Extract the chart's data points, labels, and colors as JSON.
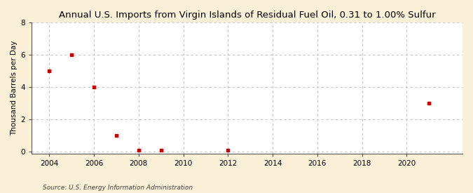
{
  "title": "Annual U.S. Imports from Virgin Islands of Residual Fuel Oil, 0.31 to 1.00% Sulfur",
  "ylabel": "Thousand Barrels per Day",
  "source": "Source: U.S. Energy Information Administration",
  "background_color": "#faf0d7",
  "plot_bg_color": "#ffffff",
  "marker_color": "#cc0000",
  "marker_size": 3.5,
  "xlim": [
    2003.2,
    2022.5
  ],
  "ylim": [
    -0.15,
    8
  ],
  "yticks": [
    0,
    2,
    4,
    6,
    8
  ],
  "xticks": [
    2004,
    2006,
    2008,
    2010,
    2012,
    2014,
    2016,
    2018,
    2020
  ],
  "data_x": [
    2004,
    2005,
    2006,
    2007,
    2008,
    2009,
    2012,
    2021
  ],
  "data_y": [
    5.0,
    6.0,
    4.0,
    1.0,
    0.05,
    0.08,
    0.05,
    3.0
  ],
  "title_fontsize": 9.5,
  "ylabel_fontsize": 7.5,
  "tick_fontsize": 7.5,
  "source_fontsize": 6.5,
  "grid_color": "#bbbbbb",
  "spine_color": "#555555"
}
